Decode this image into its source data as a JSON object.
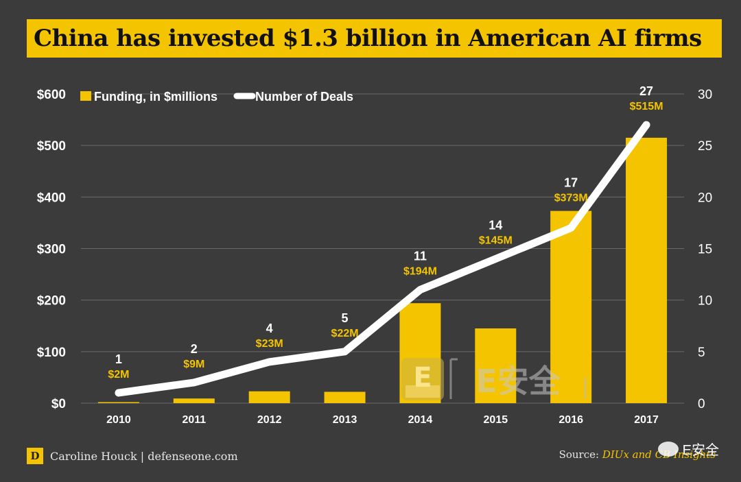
{
  "title": "China has invested $1.3 billion in American AI firms",
  "footer": {
    "logo_letter": "D",
    "credit": "Caroline Houck | defenseone.com",
    "source_label": "Source:",
    "source_value": "DIUx and CB Insights"
  },
  "watermark": {
    "center_badge_letter": "E",
    "center_text": "E安全",
    "corner_text": "E安全",
    "corner_icon": "wechat-icon"
  },
  "colors": {
    "background": "#3b3b3b",
    "bar": "#f5c400",
    "line": "#ffffff",
    "bar_label": "#f5c400",
    "deal_label": "#ffffff",
    "axis_text": "#ffffff",
    "grid": "#6a6a6a",
    "title_bg": "#f5c400"
  },
  "chart_data": {
    "type": "bar",
    "categories": [
      "2010",
      "2011",
      "2012",
      "2013",
      "2014",
      "2015",
      "2016",
      "2017"
    ],
    "series": [
      {
        "name": "Funding, in $millions",
        "type": "bar",
        "axis": "left",
        "values": [
          2,
          9,
          23,
          22,
          194,
          145,
          373,
          515
        ],
        "labels": [
          "$2M",
          "$9M",
          "$23M",
          "$22M",
          "$194M",
          "$145M",
          "$373M",
          "$515M"
        ]
      },
      {
        "name": "Number of Deals",
        "type": "line",
        "axis": "right",
        "values": [
          1,
          2,
          4,
          5,
          11,
          14,
          17,
          27
        ],
        "labels": [
          "1",
          "2",
          "4",
          "5",
          "11",
          "14",
          "17",
          "27"
        ]
      }
    ],
    "left_axis": {
      "ylim": [
        0,
        600
      ],
      "ticks": [
        0,
        100,
        200,
        300,
        400,
        500,
        600
      ],
      "tick_labels": [
        "$0",
        "$100",
        "$200",
        "$300",
        "$400",
        "$500",
        "$600"
      ]
    },
    "right_axis": {
      "ylim": [
        0,
        30
      ],
      "ticks": [
        0,
        5,
        10,
        15,
        20,
        25,
        30
      ],
      "tick_labels": [
        "0",
        "5",
        "10",
        "15",
        "20",
        "25",
        "30"
      ]
    },
    "grid": true,
    "legend_position": "top-left"
  }
}
